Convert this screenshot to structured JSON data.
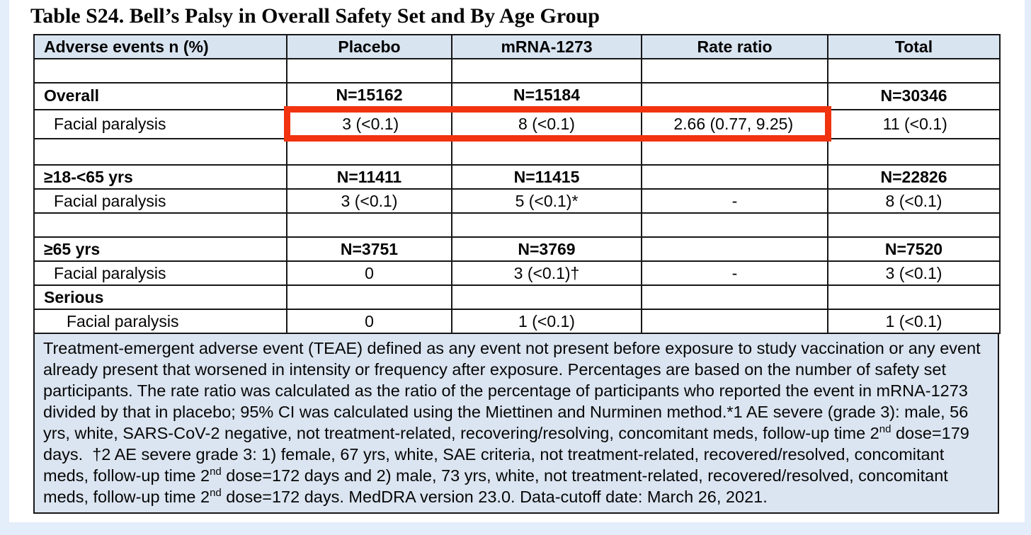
{
  "colors": {
    "page_bg": "#e4eefa",
    "panel_bg": "#ffffff",
    "header_bg": "#d9e4f1",
    "footnote_bg": "#dbe5f1",
    "border": "#171717",
    "highlight": "#f1330f"
  },
  "title": "Table S24. Bell’s Palsy in Overall Safety Set and By Age Group",
  "table": {
    "columns": [
      "Adverse events n (%)",
      "Placebo",
      "mRNA-1273",
      "Rate ratio",
      "Total"
    ],
    "rows": [
      {
        "type": "empty",
        "cells": [
          "",
          "",
          "",
          "",
          ""
        ]
      },
      {
        "type": "group",
        "cells": [
          "Overall",
          "N=15162",
          "N=15184",
          "",
          "N=30346"
        ]
      },
      {
        "type": "data",
        "highlight": true,
        "cells": [
          "Facial paralysis",
          "3 (<0.1)",
          "8 (<0.1)",
          "2.66 (0.77, 9.25)",
          "11 (<0.1)"
        ]
      },
      {
        "type": "empty",
        "cells": [
          "",
          "",
          "",
          "",
          ""
        ]
      },
      {
        "type": "group",
        "cells": [
          "≥18-<65 yrs",
          "N=11411",
          "N=11415",
          "",
          "N=22826"
        ]
      },
      {
        "type": "data",
        "cells": [
          "Facial paralysis",
          "3 (<0.1)",
          "5 (<0.1)*",
          "-",
          "8 (<0.1)"
        ]
      },
      {
        "type": "empty",
        "cells": [
          "",
          "",
          "",
          "",
          ""
        ]
      },
      {
        "type": "group",
        "cells": [
          "≥65 yrs",
          "N=3751",
          "N=3769",
          "",
          "N=7520"
        ]
      },
      {
        "type": "data",
        "cells": [
          "Facial paralysis",
          "0",
          "3 (<0.1)†",
          "-",
          "3 (<0.1)"
        ]
      },
      {
        "type": "group",
        "cells": [
          "Serious",
          "",
          "",
          "",
          ""
        ]
      },
      {
        "type": "data",
        "indent": 2,
        "cells": [
          "Facial paralysis",
          "0",
          "1 (<0.1)",
          "",
          "1 (<0.1)"
        ]
      }
    ]
  },
  "footnote": {
    "segments": [
      {
        "text": "Treatment-emergent adverse event (TEAE) defined as any event not present before exposure to study vaccination or any event already present that worsened in intensity or frequency after exposure. Percentages are based on the number of safety set participants. The rate ratio was calculated as the ratio of the percentage of participants who reported the event in mRNA-1273 divided by that in placebo; 95% CI was calculated using the Miettinen and Nurminen method.*1 AE severe (grade 3): male, 56 yrs, white, SARS-CoV-2 negative, not treatment-related, recovering/resolving, concomitant meds, follow-up time 2"
      },
      {
        "text": "nd",
        "sup": true
      },
      {
        "text": " dose=179 days.  †2 AE severe grade 3: 1) female, 67 yrs, white, SAE criteria, not treatment-related, recovered/resolved, concomitant meds, follow-up time 2"
      },
      {
        "text": "nd",
        "sup": true
      },
      {
        "text": " dose=172 days and 2) male, 73 yrs, white, not treatment-related, recovered/resolved, concomitant meds, follow-up time 2"
      },
      {
        "text": "nd",
        "sup": true
      },
      {
        "text": " dose=172 days. MedDRA version 23.0. Data-cutoff date: March 26, 2021."
      }
    ]
  }
}
